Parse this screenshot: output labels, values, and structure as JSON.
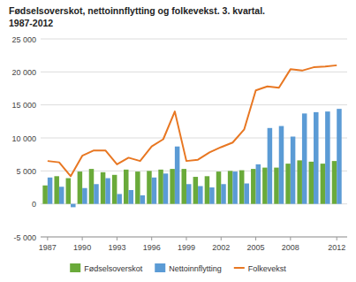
{
  "chart_data": {
    "type": "bar",
    "title": "Fødselsoverskot, nettoinnflytting og folkevekst. 3. kvartal.",
    "subtitle": "1987-2012",
    "x": [
      1987,
      1988,
      1989,
      1990,
      1991,
      1992,
      1993,
      1994,
      1995,
      1996,
      1997,
      1998,
      1999,
      2000,
      2001,
      2002,
      2003,
      2004,
      2005,
      2006,
      2007,
      2008,
      2009,
      2010,
      2011,
      2012
    ],
    "series": [
      {
        "name": "Fødselsoverskot",
        "type": "bar",
        "color": "#6aaa3a",
        "values": [
          2800,
          4200,
          3900,
          4900,
          5300,
          4800,
          4400,
          5200,
          4900,
          5000,
          5200,
          5300,
          5300,
          4100,
          4200,
          4900,
          5000,
          5100,
          5300,
          5500,
          5500,
          6100,
          6600,
          6400,
          6100,
          6500
        ]
      },
      {
        "name": "Nettoinnflytting",
        "type": "bar",
        "color": "#5b9bd5",
        "values": [
          4000,
          2600,
          -500,
          2400,
          3000,
          3900,
          1500,
          2100,
          1300,
          4000,
          4600,
          8700,
          3000,
          2700,
          2500,
          3000,
          4900,
          3100,
          6000,
          11500,
          11800,
          10200,
          13700,
          13900,
          14000,
          14400
        ]
      },
      {
        "name": "Folkevekst",
        "type": "line",
        "color": "#e87722",
        "values": [
          6500,
          6300,
          4200,
          7300,
          8100,
          8100,
          6000,
          7000,
          6500,
          8700,
          9800,
          14000,
          6500,
          6700,
          7800,
          8600,
          9300,
          11300,
          17200,
          17800,
          17600,
          20400,
          20200,
          20700,
          20800,
          21000
        ]
      }
    ],
    "xlim": [
      1986.4,
      2012.9
    ],
    "xticks": [
      1987,
      1990,
      1993,
      1996,
      1999,
      2002,
      2005,
      2008,
      2012
    ],
    "ylim": [
      -5000,
      25000
    ],
    "yticks": [
      {
        "value": -5000,
        "label": "-5 000"
      },
      0,
      {
        "value": 5000,
        "label": "5 000"
      },
      {
        "value": 10000,
        "label": "10 000"
      },
      {
        "value": 15000,
        "label": "15 000"
      },
      {
        "value": 20000,
        "label": "20 000"
      },
      {
        "value": 25000,
        "label": "25 000"
      }
    ],
    "grid": true,
    "legend": "bottom"
  }
}
